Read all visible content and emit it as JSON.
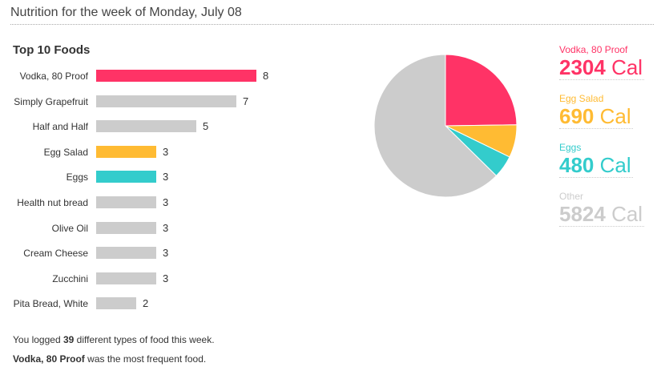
{
  "header": {
    "title": "Nutrition for the week of Monday, July 08"
  },
  "section_title": "Top 10 Foods",
  "footer": {
    "line1_pre": "You logged ",
    "line1_count": "39",
    "line1_post": " different types of food this week.",
    "line2_food": "Vodka, 80 Proof",
    "line2_post": " was the most frequent food."
  },
  "colors": {
    "pink": "#ff3366",
    "orange": "#ffbb33",
    "teal": "#33cccc",
    "gray": "#cccccc"
  },
  "chart_data": [
    {
      "type": "bar",
      "orientation": "horizontal",
      "title": "Top 10 Foods",
      "categories": [
        "Vodka, 80 Proof",
        "Simply Grapefruit",
        "Half and Half",
        "Egg Salad",
        "Eggs",
        "Health nut bread",
        "Olive Oil",
        "Cream Cheese",
        "Zucchini",
        "Pita Bread, White"
      ],
      "values": [
        8,
        7,
        5,
        3,
        3,
        3,
        3,
        3,
        3,
        2
      ],
      "colors": [
        "#ff3366",
        "#cccccc",
        "#cccccc",
        "#ffbb33",
        "#33cccc",
        "#cccccc",
        "#cccccc",
        "#cccccc",
        "#cccccc",
        "#cccccc"
      ],
      "grid": false
    },
    {
      "type": "pie",
      "slices": [
        {
          "label": "Vodka, 80 Proof",
          "value": 2304,
          "unit": "Cal",
          "color": "#ff3366"
        },
        {
          "label": "Egg Salad",
          "value": 690,
          "unit": "Cal",
          "color": "#ffbb33"
        },
        {
          "label": "Eggs",
          "value": 480,
          "unit": "Cal",
          "color": "#33cccc"
        },
        {
          "label": "Other",
          "value": 5824,
          "unit": "Cal",
          "color": "#cccccc"
        }
      ],
      "legend_position": "right"
    }
  ]
}
